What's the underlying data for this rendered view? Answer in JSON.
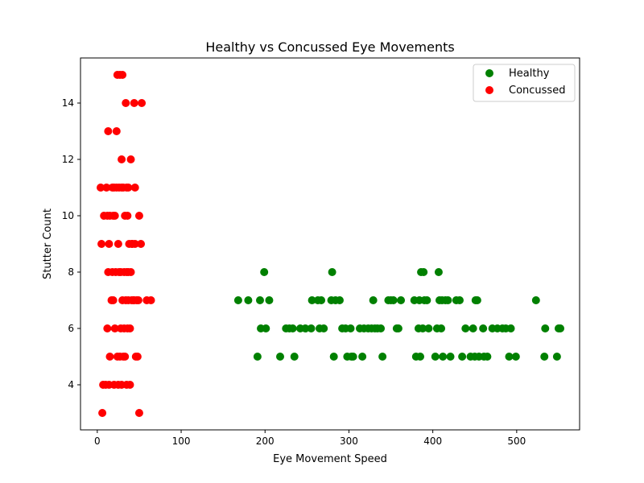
{
  "chart_data": {
    "type": "scatter",
    "title": "Healthy vs Concussed Eye Movements",
    "xlabel": "Eye Movement Speed",
    "ylabel": "Stutter Count",
    "xlim": [
      -20,
      575
    ],
    "ylim": [
      2.4,
      15.6
    ],
    "xticks": [
      0,
      100,
      200,
      300,
      400,
      500
    ],
    "yticks": [
      4,
      6,
      8,
      10,
      12,
      14
    ],
    "legend_position": "top-right",
    "grid": false,
    "series": [
      {
        "name": "Healthy",
        "color": "#008000",
        "points": [
          [
            168,
            7
          ],
          [
            180,
            7
          ],
          [
            191,
            5
          ],
          [
            194,
            7
          ],
          [
            195,
            6
          ],
          [
            199,
            8
          ],
          [
            201,
            6
          ],
          [
            205,
            7
          ],
          [
            218,
            5
          ],
          [
            225,
            6
          ],
          [
            229,
            6
          ],
          [
            233,
            6
          ],
          [
            235,
            5
          ],
          [
            242,
            6
          ],
          [
            248,
            6
          ],
          [
            255,
            6
          ],
          [
            256,
            7
          ],
          [
            263,
            7
          ],
          [
            265,
            6
          ],
          [
            267,
            7
          ],
          [
            270,
            6
          ],
          [
            279,
            7
          ],
          [
            280,
            8
          ],
          [
            282,
            5
          ],
          [
            284,
            7
          ],
          [
            289,
            7
          ],
          [
            292,
            6
          ],
          [
            296,
            6
          ],
          [
            298,
            5
          ],
          [
            302,
            6
          ],
          [
            303,
            5
          ],
          [
            305,
            5
          ],
          [
            313,
            6
          ],
          [
            316,
            5
          ],
          [
            318,
            6
          ],
          [
            323,
            6
          ],
          [
            327,
            6
          ],
          [
            329,
            7
          ],
          [
            331,
            6
          ],
          [
            334,
            6
          ],
          [
            338,
            6
          ],
          [
            340,
            5
          ],
          [
            347,
            7
          ],
          [
            350,
            7
          ],
          [
            353,
            7
          ],
          [
            357,
            6
          ],
          [
            359,
            6
          ],
          [
            362,
            7
          ],
          [
            378,
            7
          ],
          [
            380,
            5
          ],
          [
            383,
            6
          ],
          [
            384,
            7
          ],
          [
            385,
            5
          ],
          [
            386,
            8
          ],
          [
            388,
            6
          ],
          [
            389,
            8
          ],
          [
            390,
            7
          ],
          [
            393,
            7
          ],
          [
            395,
            6
          ],
          [
            403,
            5
          ],
          [
            405,
            6
          ],
          [
            407,
            8
          ],
          [
            408,
            7
          ],
          [
            410,
            6
          ],
          [
            411,
            7
          ],
          [
            412,
            5
          ],
          [
            415,
            7
          ],
          [
            418,
            7
          ],
          [
            421,
            5
          ],
          [
            428,
            7
          ],
          [
            432,
            7
          ],
          [
            435,
            5
          ],
          [
            439,
            6
          ],
          [
            445,
            5
          ],
          [
            448,
            6
          ],
          [
            450,
            5
          ],
          [
            451,
            7
          ],
          [
            453,
            7
          ],
          [
            455,
            5
          ],
          [
            460,
            6
          ],
          [
            461,
            5
          ],
          [
            465,
            5
          ],
          [
            471,
            6
          ],
          [
            477,
            6
          ],
          [
            483,
            6
          ],
          [
            487,
            6
          ],
          [
            491,
            5
          ],
          [
            493,
            6
          ],
          [
            499,
            5
          ],
          [
            523,
            7
          ],
          [
            533,
            5
          ],
          [
            534,
            6
          ],
          [
            548,
            5
          ],
          [
            550,
            6
          ],
          [
            552,
            6
          ]
        ]
      },
      {
        "name": "Concussed",
        "color": "#ff0000",
        "points": [
          [
            4,
            11
          ],
          [
            5,
            9
          ],
          [
            6,
            3
          ],
          [
            7,
            4
          ],
          [
            8,
            10
          ],
          [
            10,
            4
          ],
          [
            11,
            11
          ],
          [
            12,
            6
          ],
          [
            12,
            10
          ],
          [
            13,
            8
          ],
          [
            13,
            13
          ],
          [
            14,
            9
          ],
          [
            14,
            4
          ],
          [
            15,
            10
          ],
          [
            15,
            5
          ],
          [
            17,
            7
          ],
          [
            18,
            8
          ],
          [
            18,
            11
          ],
          [
            19,
            7
          ],
          [
            19,
            10
          ],
          [
            20,
            4
          ],
          [
            20,
            11
          ],
          [
            21,
            6
          ],
          [
            21,
            10
          ],
          [
            22,
            8
          ],
          [
            23,
            11
          ],
          [
            23,
            13
          ],
          [
            24,
            5
          ],
          [
            24,
            15
          ],
          [
            25,
            9
          ],
          [
            25,
            4
          ],
          [
            26,
            8
          ],
          [
            26,
            11
          ],
          [
            27,
            5
          ],
          [
            27,
            15
          ],
          [
            28,
            8
          ],
          [
            28,
            6
          ],
          [
            29,
            4
          ],
          [
            29,
            11
          ],
          [
            29,
            12
          ],
          [
            30,
            7
          ],
          [
            30,
            15
          ],
          [
            31,
            5
          ],
          [
            31,
            11
          ],
          [
            32,
            6
          ],
          [
            32,
            8
          ],
          [
            33,
            5
          ],
          [
            33,
            10
          ],
          [
            34,
            7
          ],
          [
            34,
            14
          ],
          [
            35,
            8
          ],
          [
            35,
            4
          ],
          [
            35,
            11
          ],
          [
            36,
            6
          ],
          [
            36,
            10
          ],
          [
            37,
            7
          ],
          [
            37,
            8
          ],
          [
            37,
            11
          ],
          [
            38,
            9
          ],
          [
            39,
            4
          ],
          [
            39,
            6
          ],
          [
            40,
            8
          ],
          [
            40,
            12
          ],
          [
            41,
            7
          ],
          [
            41,
            9
          ],
          [
            42,
            9
          ],
          [
            43,
            7
          ],
          [
            44,
            7
          ],
          [
            44,
            14
          ],
          [
            45,
            11
          ],
          [
            45,
            9
          ],
          [
            46,
            5
          ],
          [
            47,
            7
          ],
          [
            48,
            5
          ],
          [
            49,
            7
          ],
          [
            50,
            10
          ],
          [
            50,
            3
          ],
          [
            52,
            9
          ],
          [
            53,
            14
          ],
          [
            59,
            7
          ],
          [
            64,
            7
          ]
        ]
      }
    ]
  }
}
